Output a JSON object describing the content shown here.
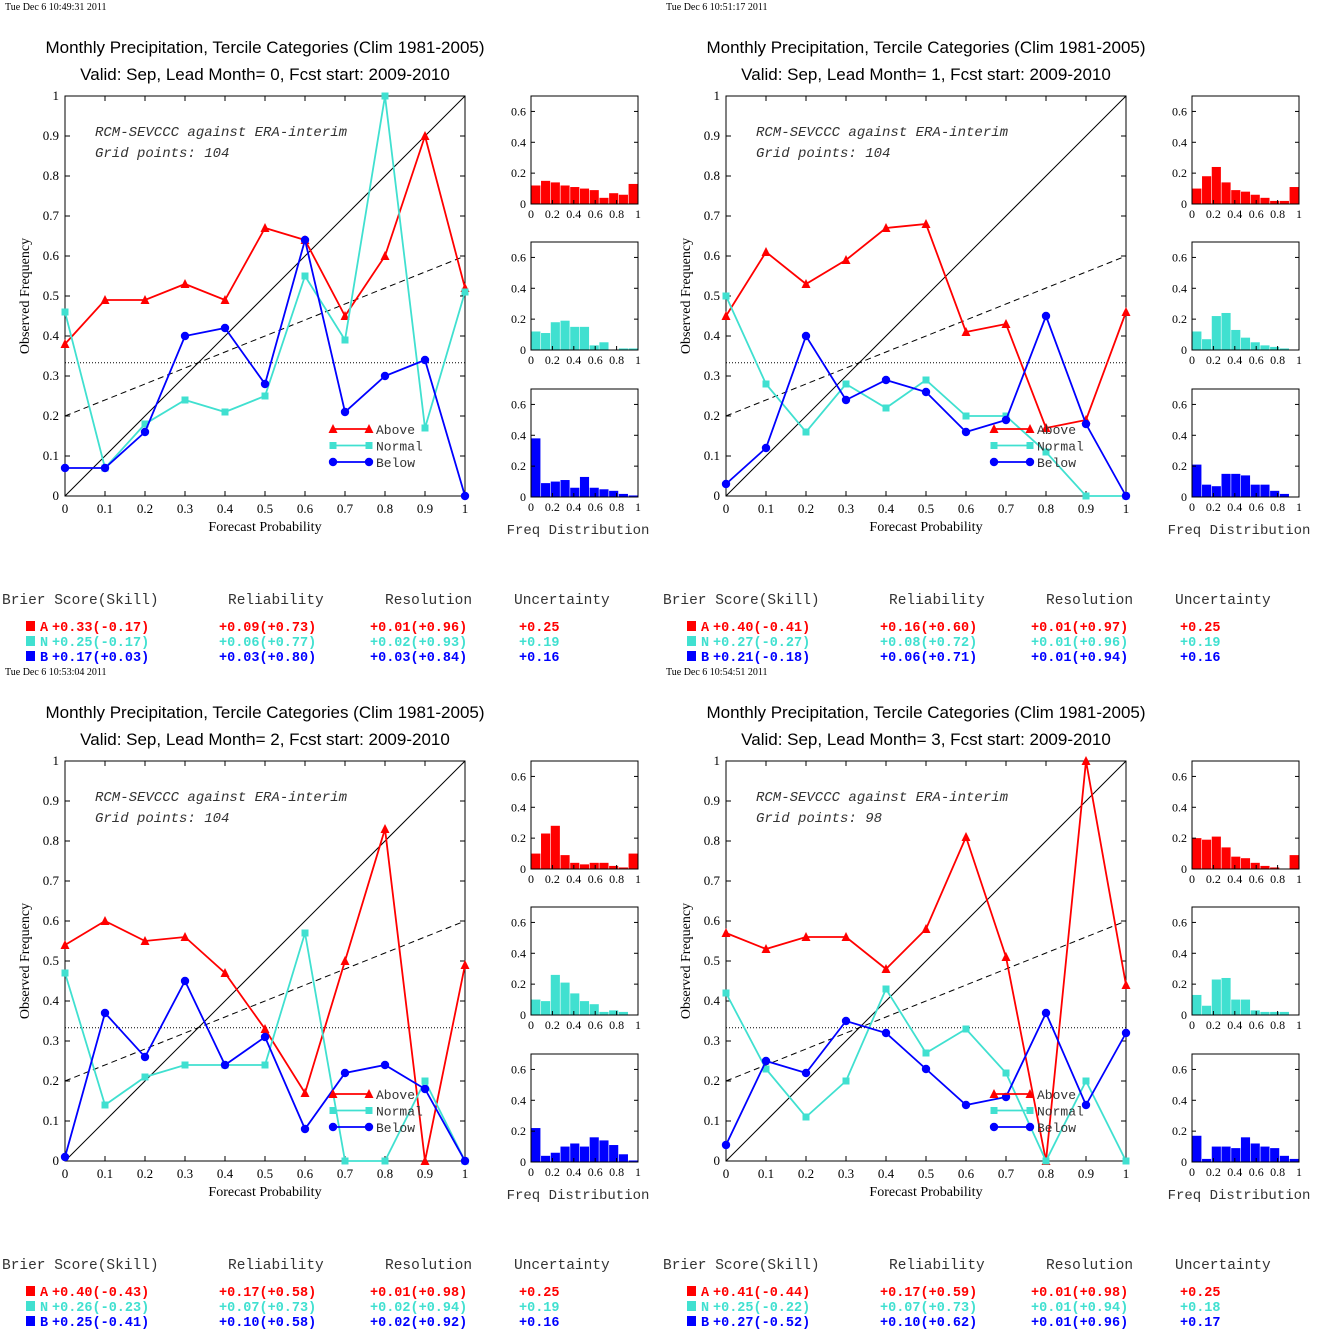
{
  "colors": {
    "above": "#ff0000",
    "normal": "#40e0d0",
    "below": "#0000ff",
    "axis": "#000000"
  },
  "legend": [
    "Above",
    "Normal",
    "Below"
  ],
  "score_headers": [
    "Brier Score(Skill)",
    "Reliability",
    "Resolution",
    "Uncertainty"
  ],
  "chart_data": [
    {
      "type": "line",
      "timestamp": "Tue Dec  6 10:49:31 2011",
      "title": "Monthly Precipitation, Tercile Categories (Clim 1981-2005)",
      "subtitle": "Valid: Sep, Lead Month= 0, Fcst start: 2009-2010",
      "annotation": [
        "RCM-SEVCCC against ERA-interim",
        "Grid points:  104"
      ],
      "xlabel": "Forecast Probability",
      "ylabel": "Observed Frequency",
      "xlim": [
        0,
        1
      ],
      "ylim": [
        0,
        1
      ],
      "x": [
        0,
        0.1,
        0.2,
        0.3,
        0.4,
        0.5,
        0.6,
        0.7,
        0.8,
        0.9,
        1
      ],
      "xticks": [
        "0",
        "0.1",
        "0.2",
        "0.3",
        "0.4",
        "0.5",
        "0.6",
        "0.7",
        "0.8",
        "0.9",
        "1"
      ],
      "yticks": [
        "0",
        "0.1",
        "0.2",
        "0.3",
        "0.4",
        "0.5",
        "0.6",
        "0.7",
        "0.8",
        "0.9",
        "1"
      ],
      "series": [
        {
          "name": "Above",
          "values": [
            0.38,
            0.49,
            0.49,
            0.53,
            0.49,
            0.67,
            0.64,
            0.45,
            0.6,
            0.9,
            0.52
          ]
        },
        {
          "name": "Normal",
          "values": [
            0.46,
            0.07,
            0.18,
            0.24,
            0.21,
            0.25,
            0.55,
            0.39,
            1.0,
            0.17,
            0.51
          ]
        },
        {
          "name": "Below",
          "values": [
            0.07,
            0.07,
            0.16,
            0.4,
            0.42,
            0.28,
            0.64,
            0.21,
            0.3,
            0.34,
            0.0
          ]
        }
      ],
      "reference_lines": {
        "diagonal": [
          [
            0,
            0
          ],
          [
            1,
            1
          ]
        ],
        "dashed": [
          [
            0,
            0.2
          ],
          [
            1,
            0.6
          ]
        ],
        "dotted": 0.333
      },
      "freq_distribution": {
        "label": "Freq Distribution",
        "bins": [
          0,
          0.1,
          0.2,
          0.3,
          0.4,
          0.5,
          0.6,
          0.7,
          0.8,
          0.9,
          1
        ],
        "yticks": [
          "0",
          "0.2",
          "0.4",
          "0.6"
        ],
        "xticks": [
          "0",
          "0.2",
          "0.4",
          "0.6",
          "0.8",
          "1"
        ],
        "ylim": [
          0,
          0.7
        ],
        "above": [
          0.12,
          0.15,
          0.14,
          0.12,
          0.11,
          0.1,
          0.09,
          0.04,
          0.07,
          0.06,
          0.13
        ],
        "normal": [
          0.12,
          0.11,
          0.18,
          0.19,
          0.15,
          0.15,
          0.03,
          0.05,
          0.0,
          0.01,
          0.01
        ],
        "below": [
          0.38,
          0.09,
          0.1,
          0.11,
          0.06,
          0.13,
          0.06,
          0.05,
          0.04,
          0.02,
          0.01
        ]
      },
      "scores": [
        {
          "cat": "A",
          "brier": "+0.33(-0.17)",
          "reliability": "+0.09(+0.73)",
          "resolution": "+0.01(+0.96)",
          "uncertainty": "+0.25"
        },
        {
          "cat": "N",
          "brier": "+0.25(-0.17)",
          "reliability": "+0.06(+0.77)",
          "resolution": "+0.02(+0.93)",
          "uncertainty": "+0.19"
        },
        {
          "cat": "B",
          "brier": "+0.17(+0.03)",
          "reliability": "+0.03(+0.80)",
          "resolution": "+0.03(+0.84)",
          "uncertainty": "+0.16"
        }
      ]
    },
    {
      "type": "line",
      "timestamp": "Tue Dec  6 10:51:17 2011",
      "title": "Monthly Precipitation, Tercile Categories (Clim 1981-2005)",
      "subtitle": "Valid: Sep, Lead Month= 1, Fcst start: 2009-2010",
      "annotation": [
        "RCM-SEVCCC against ERA-interim",
        "Grid points:  104"
      ],
      "xlabel": "Forecast Probability",
      "ylabel": "Observed Frequency",
      "xlim": [
        0,
        1
      ],
      "ylim": [
        0,
        1
      ],
      "x": [
        0,
        0.1,
        0.2,
        0.3,
        0.4,
        0.5,
        0.6,
        0.7,
        0.8,
        0.9,
        1
      ],
      "xticks": [
        "0",
        "0.1",
        "0.2",
        "0.3",
        "0.4",
        "0.5",
        "0.6",
        "0.7",
        "0.8",
        "0.9",
        "1"
      ],
      "yticks": [
        "0",
        "0.1",
        "0.2",
        "0.3",
        "0.4",
        "0.5",
        "0.6",
        "0.7",
        "0.8",
        "0.9",
        "1"
      ],
      "series": [
        {
          "name": "Above",
          "values": [
            0.45,
            0.61,
            0.53,
            0.59,
            0.67,
            0.68,
            0.41,
            0.43,
            0.17,
            0.19,
            0.46
          ]
        },
        {
          "name": "Normal",
          "values": [
            0.5,
            0.28,
            0.16,
            0.28,
            0.22,
            0.29,
            0.2,
            0.2,
            0.11,
            0.0,
            0.0
          ]
        },
        {
          "name": "Below",
          "values": [
            0.03,
            0.12,
            0.4,
            0.24,
            0.29,
            0.26,
            0.16,
            0.19,
            0.45,
            0.18,
            0.0
          ]
        }
      ],
      "reference_lines": {
        "diagonal": [
          [
            0,
            0
          ],
          [
            1,
            1
          ]
        ],
        "dashed": [
          [
            0,
            0.2
          ],
          [
            1,
            0.6
          ]
        ],
        "dotted": 0.333
      },
      "freq_distribution": {
        "label": "Freq Distribution",
        "bins": [
          0,
          0.1,
          0.2,
          0.3,
          0.4,
          0.5,
          0.6,
          0.7,
          0.8,
          0.9,
          1
        ],
        "yticks": [
          "0",
          "0.2",
          "0.4",
          "0.6"
        ],
        "xticks": [
          "0",
          "0.2",
          "0.4",
          "0.6",
          "0.8",
          "1"
        ],
        "ylim": [
          0,
          0.7
        ],
        "above": [
          0.1,
          0.18,
          0.24,
          0.14,
          0.09,
          0.08,
          0.06,
          0.04,
          0.02,
          0.02,
          0.11
        ],
        "normal": [
          0.12,
          0.07,
          0.22,
          0.24,
          0.13,
          0.08,
          0.05,
          0.03,
          0.02,
          0.01,
          0.0
        ],
        "below": [
          0.21,
          0.08,
          0.07,
          0.15,
          0.15,
          0.14,
          0.08,
          0.08,
          0.04,
          0.02,
          0.0
        ]
      },
      "scores": [
        {
          "cat": "A",
          "brier": "+0.40(-0.41)",
          "reliability": "+0.16(+0.60)",
          "resolution": "+0.01(+0.97)",
          "uncertainty": "+0.25"
        },
        {
          "cat": "N",
          "brier": "+0.27(-0.27)",
          "reliability": "+0.08(+0.72)",
          "resolution": "+0.01(+0.96)",
          "uncertainty": "+0.19"
        },
        {
          "cat": "B",
          "brier": "+0.21(-0.18)",
          "reliability": "+0.06(+0.71)",
          "resolution": "+0.01(+0.94)",
          "uncertainty": "+0.16"
        }
      ]
    },
    {
      "type": "line",
      "timestamp": "Tue Dec  6 10:53:04 2011",
      "title": "Monthly Precipitation, Tercile Categories (Clim 1981-2005)",
      "subtitle": "Valid: Sep, Lead Month= 2, Fcst start: 2009-2010",
      "annotation": [
        "RCM-SEVCCC against ERA-interim",
        "Grid points:  104"
      ],
      "xlabel": "Forecast Probability",
      "ylabel": "Observed Frequency",
      "xlim": [
        0,
        1
      ],
      "ylim": [
        0,
        1
      ],
      "x": [
        0,
        0.1,
        0.2,
        0.3,
        0.4,
        0.5,
        0.6,
        0.7,
        0.8,
        0.9,
        1
      ],
      "xticks": [
        "0",
        "0.1",
        "0.2",
        "0.3",
        "0.4",
        "0.5",
        "0.6",
        "0.7",
        "0.8",
        "0.9",
        "1"
      ],
      "yticks": [
        "0",
        "0.1",
        "0.2",
        "0.3",
        "0.4",
        "0.5",
        "0.6",
        "0.7",
        "0.8",
        "0.9",
        "1"
      ],
      "series": [
        {
          "name": "Above",
          "values": [
            0.54,
            0.6,
            0.55,
            0.56,
            0.47,
            0.33,
            0.17,
            0.5,
            0.83,
            0.0,
            0.49
          ]
        },
        {
          "name": "Normal",
          "values": [
            0.47,
            0.14,
            0.21,
            0.24,
            0.24,
            0.24,
            0.57,
            0.0,
            0.0,
            0.2,
            0.0
          ]
        },
        {
          "name": "Below",
          "values": [
            0.01,
            0.37,
            0.26,
            0.45,
            0.24,
            0.31,
            0.08,
            0.22,
            0.24,
            0.18,
            0.0
          ]
        }
      ],
      "reference_lines": {
        "diagonal": [
          [
            0,
            0
          ],
          [
            1,
            1
          ]
        ],
        "dashed": [
          [
            0,
            0.2
          ],
          [
            1,
            0.6
          ]
        ],
        "dotted": 0.333
      },
      "freq_distribution": {
        "label": "Freq Distribution",
        "bins": [
          0,
          0.1,
          0.2,
          0.3,
          0.4,
          0.5,
          0.6,
          0.7,
          0.8,
          0.9,
          1
        ],
        "yticks": [
          "0",
          "0.2",
          "0.4",
          "0.6"
        ],
        "xticks": [
          "0",
          "0.2",
          "0.4",
          "0.6",
          "0.8",
          "1"
        ],
        "ylim": [
          0,
          0.7
        ],
        "above": [
          0.1,
          0.23,
          0.28,
          0.09,
          0.04,
          0.03,
          0.04,
          0.04,
          0.02,
          0.01,
          0.1
        ],
        "normal": [
          0.1,
          0.09,
          0.26,
          0.21,
          0.14,
          0.09,
          0.07,
          0.02,
          0.03,
          0.02,
          0.0
        ],
        "below": [
          0.22,
          0.04,
          0.06,
          0.1,
          0.12,
          0.1,
          0.16,
          0.14,
          0.11,
          0.05,
          0.01
        ]
      },
      "scores": [
        {
          "cat": "A",
          "brier": "+0.40(-0.43)",
          "reliability": "+0.17(+0.58)",
          "resolution": "+0.01(+0.98)",
          "uncertainty": "+0.25"
        },
        {
          "cat": "N",
          "brier": "+0.26(-0.23)",
          "reliability": "+0.07(+0.73)",
          "resolution": "+0.02(+0.94)",
          "uncertainty": "+0.19"
        },
        {
          "cat": "B",
          "brier": "+0.25(-0.41)",
          "reliability": "+0.10(+0.58)",
          "resolution": "+0.02(+0.92)",
          "uncertainty": "+0.16"
        }
      ]
    },
    {
      "type": "line",
      "timestamp": "Tue Dec  6 10:54:51 2011",
      "title": "Monthly Precipitation, Tercile Categories (Clim 1981-2005)",
      "subtitle": "Valid: Sep, Lead Month= 3, Fcst start: 2009-2010",
      "annotation": [
        "RCM-SEVCCC against ERA-interim",
        "Grid points:   98"
      ],
      "xlabel": "Forecast Probability",
      "ylabel": "Observed Frequency",
      "xlim": [
        0,
        1
      ],
      "ylim": [
        0,
        1
      ],
      "x": [
        0,
        0.1,
        0.2,
        0.3,
        0.4,
        0.5,
        0.6,
        0.7,
        0.8,
        0.9,
        1
      ],
      "xticks": [
        "0",
        "0.1",
        "0.2",
        "0.3",
        "0.4",
        "0.5",
        "0.6",
        "0.7",
        "0.8",
        "0.9",
        "1"
      ],
      "yticks": [
        "0",
        "0.1",
        "0.2",
        "0.3",
        "0.4",
        "0.5",
        "0.6",
        "0.7",
        "0.8",
        "0.9",
        "1"
      ],
      "series": [
        {
          "name": "Above",
          "values": [
            0.57,
            0.53,
            0.56,
            0.56,
            0.48,
            0.58,
            0.81,
            0.51,
            0.0,
            1.0,
            0.44
          ]
        },
        {
          "name": "Normal",
          "values": [
            0.42,
            0.23,
            0.11,
            0.2,
            0.43,
            0.27,
            0.33,
            0.22,
            0.0,
            0.2,
            0.0
          ]
        },
        {
          "name": "Below",
          "values": [
            0.04,
            0.25,
            0.22,
            0.35,
            0.32,
            0.23,
            0.14,
            0.16,
            0.37,
            0.14,
            0.32
          ]
        }
      ],
      "reference_lines": {
        "diagonal": [
          [
            0,
            0
          ],
          [
            1,
            1
          ]
        ],
        "dashed": [
          [
            0,
            0.2
          ],
          [
            1,
            0.6
          ]
        ],
        "dotted": 0.333
      },
      "freq_distribution": {
        "label": "Freq Distribution",
        "bins": [
          0,
          0.1,
          0.2,
          0.3,
          0.4,
          0.5,
          0.6,
          0.7,
          0.8,
          0.9,
          1
        ],
        "yticks": [
          "0",
          "0.2",
          "0.4",
          "0.6"
        ],
        "xticks": [
          "0",
          "0.2",
          "0.4",
          "0.6",
          "0.8",
          "1"
        ],
        "ylim": [
          0,
          0.7
        ],
        "above": [
          0.2,
          0.19,
          0.21,
          0.14,
          0.08,
          0.07,
          0.04,
          0.02,
          0.01,
          0.0,
          0.09
        ],
        "normal": [
          0.13,
          0.06,
          0.23,
          0.24,
          0.1,
          0.1,
          0.03,
          0.02,
          0.02,
          0.02,
          0.0
        ],
        "below": [
          0.17,
          0.02,
          0.1,
          0.1,
          0.09,
          0.16,
          0.12,
          0.1,
          0.09,
          0.04,
          0.02
        ]
      },
      "scores": [
        {
          "cat": "A",
          "brier": "+0.41(-0.44)",
          "reliability": "+0.17(+0.59)",
          "resolution": "+0.01(+0.98)",
          "uncertainty": "+0.25"
        },
        {
          "cat": "N",
          "brier": "+0.25(-0.22)",
          "reliability": "+0.07(+0.73)",
          "resolution": "+0.01(+0.94)",
          "uncertainty": "+0.18"
        },
        {
          "cat": "B",
          "brier": "+0.27(-0.52)",
          "reliability": "+0.10(+0.62)",
          "resolution": "+0.01(+0.96)",
          "uncertainty": "+0.17"
        }
      ]
    }
  ]
}
